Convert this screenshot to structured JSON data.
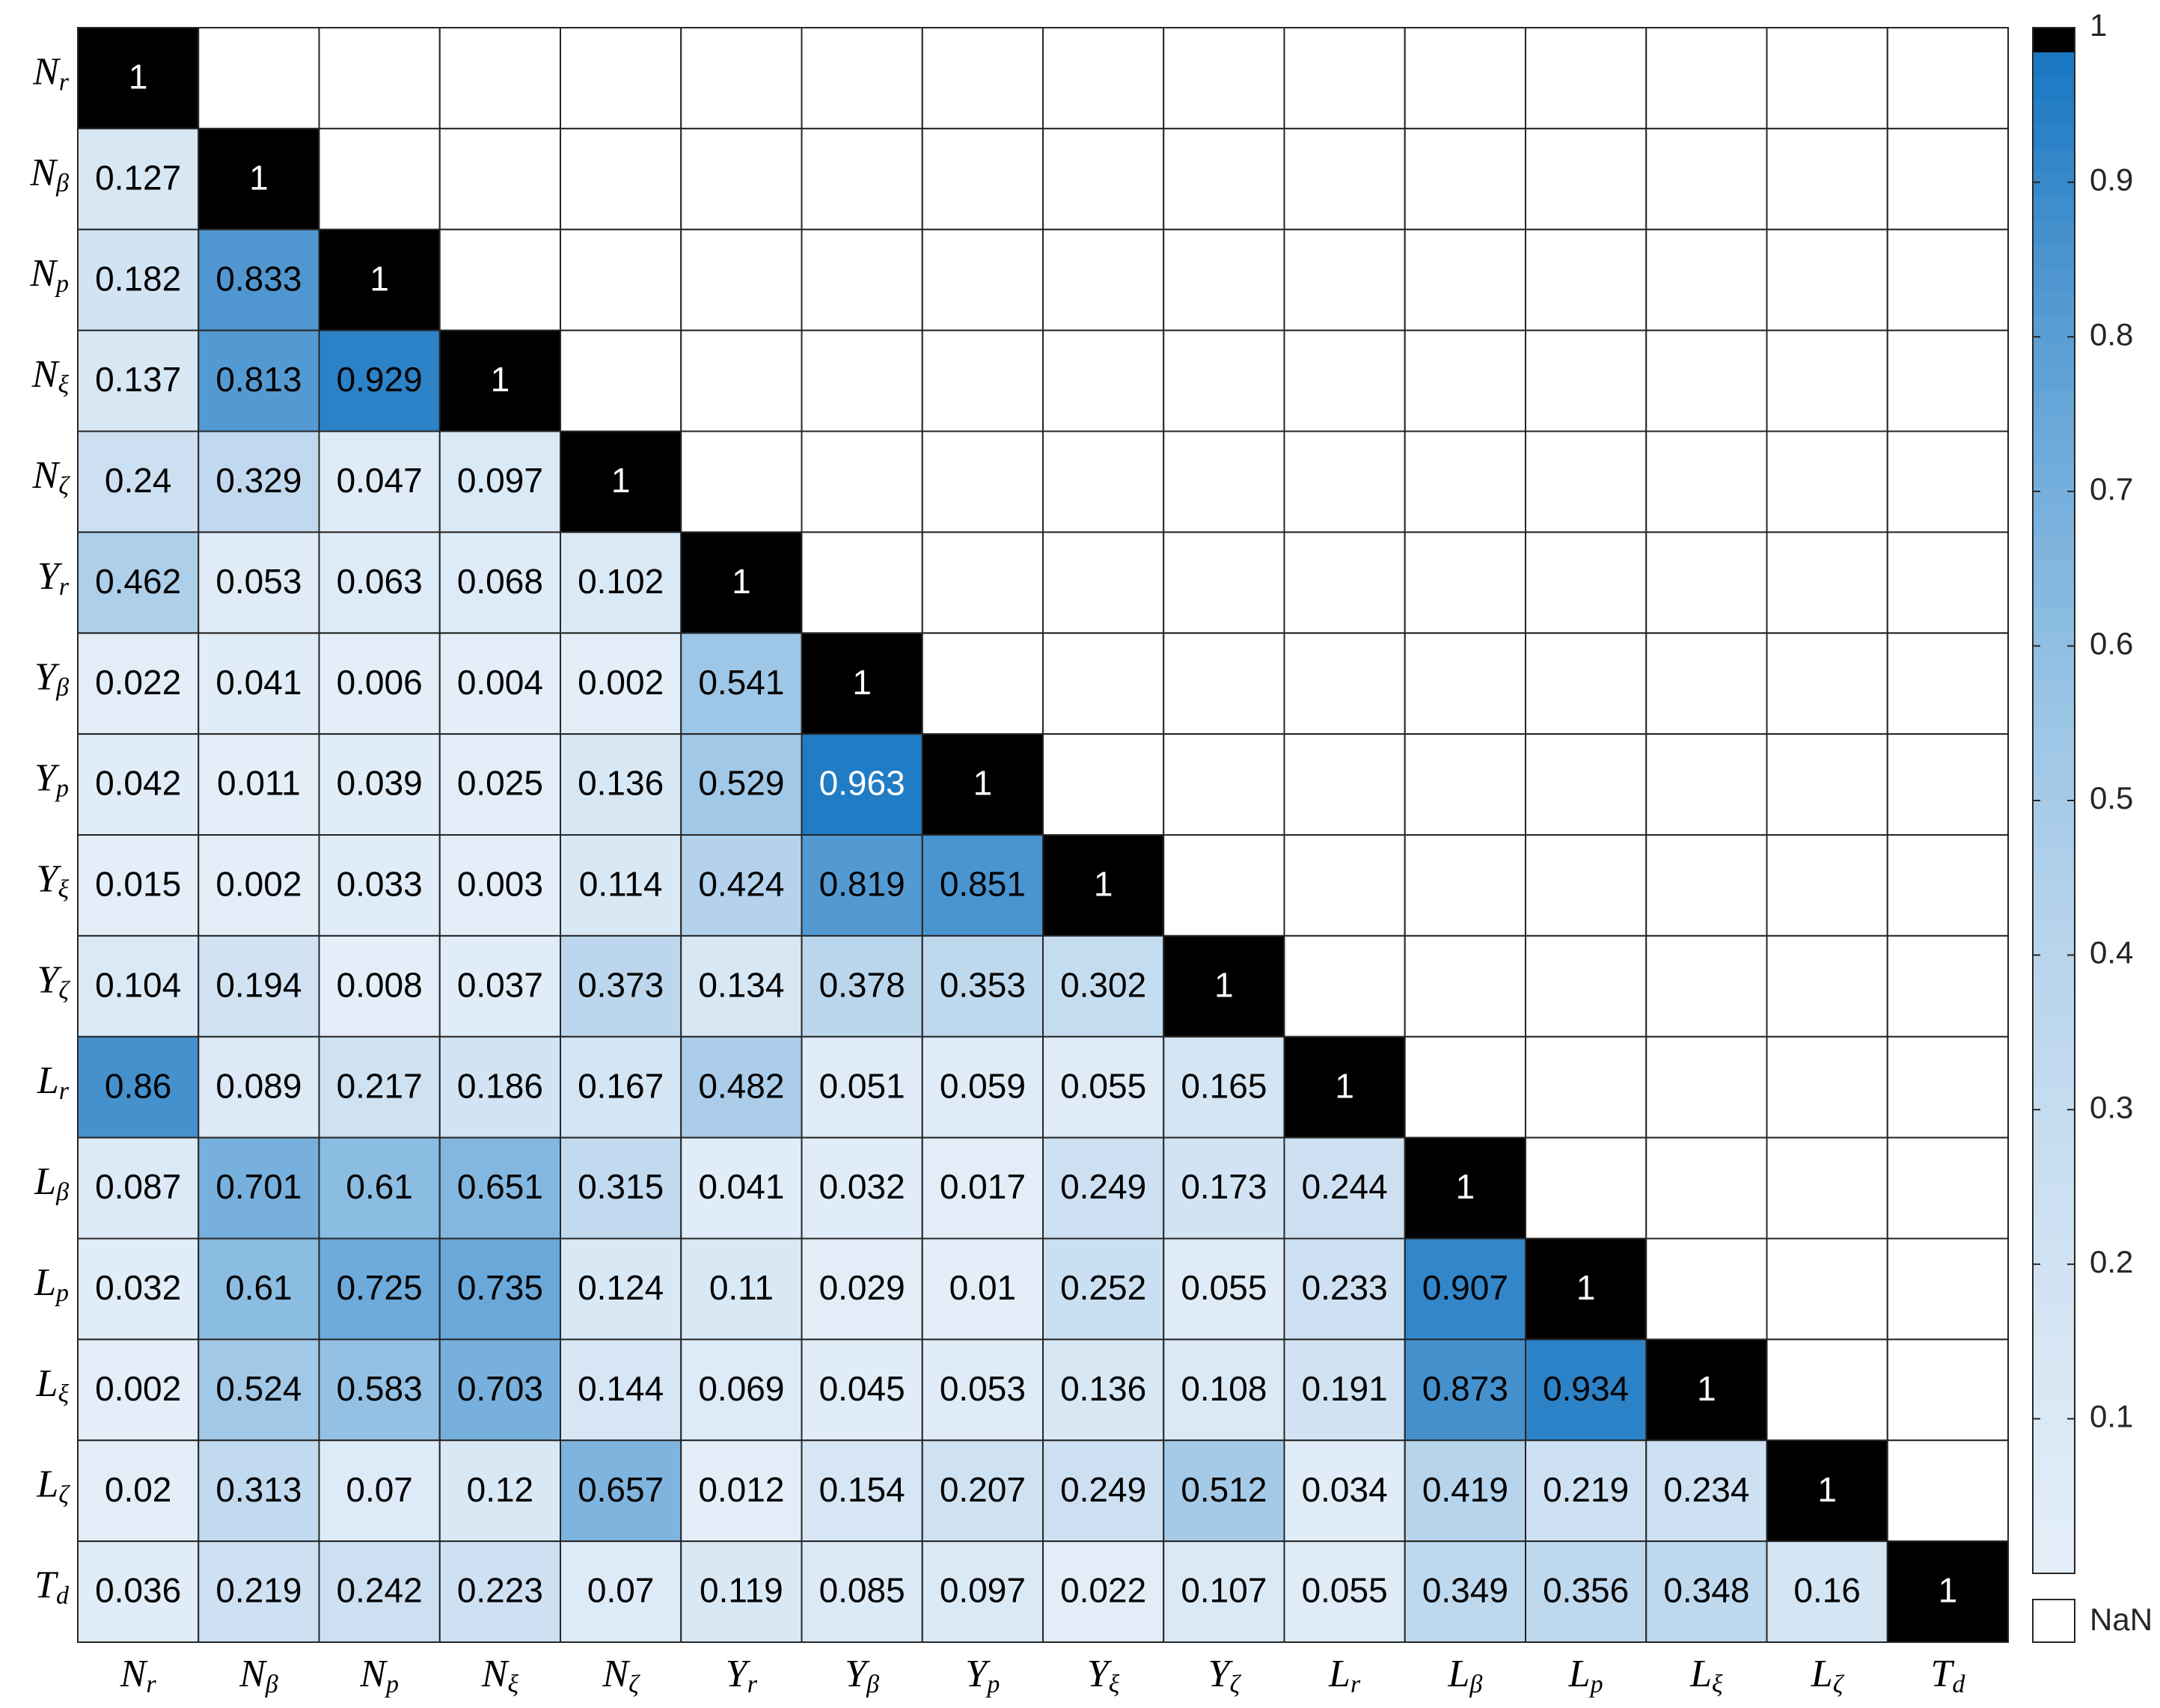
{
  "chart_data": {
    "type": "heatmap",
    "labels": [
      [
        "N",
        "r"
      ],
      [
        "N",
        "β"
      ],
      [
        "N",
        "p"
      ],
      [
        "N",
        "ξ"
      ],
      [
        "N",
        "ζ"
      ],
      [
        "Y",
        "r"
      ],
      [
        "Y",
        "β"
      ],
      [
        "Y",
        "p"
      ],
      [
        "Y",
        "ξ"
      ],
      [
        "Y",
        "ζ"
      ],
      [
        "L",
        "r"
      ],
      [
        "L",
        "β"
      ],
      [
        "L",
        "p"
      ],
      [
        "L",
        "ξ"
      ],
      [
        "L",
        "ζ"
      ],
      [
        "T",
        "d"
      ]
    ],
    "values": [
      [
        1,
        null,
        null,
        null,
        null,
        null,
        null,
        null,
        null,
        null,
        null,
        null,
        null,
        null,
        null,
        null
      ],
      [
        0.127,
        1,
        null,
        null,
        null,
        null,
        null,
        null,
        null,
        null,
        null,
        null,
        null,
        null,
        null,
        null
      ],
      [
        0.182,
        0.833,
        1,
        null,
        null,
        null,
        null,
        null,
        null,
        null,
        null,
        null,
        null,
        null,
        null,
        null
      ],
      [
        0.137,
        0.813,
        0.929,
        1,
        null,
        null,
        null,
        null,
        null,
        null,
        null,
        null,
        null,
        null,
        null,
        null
      ],
      [
        0.24,
        0.329,
        0.047,
        0.097,
        1,
        null,
        null,
        null,
        null,
        null,
        null,
        null,
        null,
        null,
        null,
        null
      ],
      [
        0.462,
        0.053,
        0.063,
        0.068,
        0.102,
        1,
        null,
        null,
        null,
        null,
        null,
        null,
        null,
        null,
        null,
        null
      ],
      [
        0.022,
        0.041,
        0.006,
        0.004,
        0.002,
        0.541,
        1,
        null,
        null,
        null,
        null,
        null,
        null,
        null,
        null,
        null
      ],
      [
        0.042,
        0.011,
        0.039,
        0.025,
        0.136,
        0.529,
        0.963,
        1,
        null,
        null,
        null,
        null,
        null,
        null,
        null,
        null
      ],
      [
        0.015,
        0.002,
        0.033,
        0.003,
        0.114,
        0.424,
        0.819,
        0.851,
        1,
        null,
        null,
        null,
        null,
        null,
        null,
        null
      ],
      [
        0.104,
        0.194,
        0.008,
        0.037,
        0.373,
        0.134,
        0.378,
        0.353,
        0.302,
        1,
        null,
        null,
        null,
        null,
        null,
        null
      ],
      [
        0.86,
        0.089,
        0.217,
        0.186,
        0.167,
        0.482,
        0.051,
        0.059,
        0.055,
        0.165,
        1,
        null,
        null,
        null,
        null,
        null
      ],
      [
        0.087,
        0.701,
        0.61,
        0.651,
        0.315,
        0.041,
        0.032,
        0.017,
        0.249,
        0.173,
        0.244,
        1,
        null,
        null,
        null,
        null
      ],
      [
        0.032,
        0.61,
        0.725,
        0.735,
        0.124,
        0.11,
        0.029,
        0.01,
        0.252,
        0.055,
        0.233,
        0.907,
        1,
        null,
        null,
        null
      ],
      [
        0.002,
        0.524,
        0.583,
        0.703,
        0.144,
        0.069,
        0.045,
        0.053,
        0.136,
        0.108,
        0.191,
        0.873,
        0.934,
        1,
        null,
        null
      ],
      [
        0.02,
        0.313,
        0.07,
        0.12,
        0.657,
        0.012,
        0.154,
        0.207,
        0.249,
        0.512,
        0.034,
        0.419,
        0.219,
        0.234,
        1,
        null
      ],
      [
        0.036,
        0.219,
        0.242,
        0.223,
        0.07,
        0.119,
        0.085,
        0.097,
        0.022,
        0.107,
        0.055,
        0.349,
        0.356,
        0.348,
        0.16,
        1
      ]
    ],
    "clim": [
      0,
      1
    ],
    "cticks": [
      0.1,
      0.2,
      0.3,
      0.4,
      0.5,
      0.6,
      0.7,
      0.8,
      0.9,
      1
    ],
    "colormap": [
      "#e3eef9",
      "#d6e6f4",
      "#c7ddf0",
      "#b5d3eb",
      "#9ac4e5",
      "#76afdc",
      "#4f97d1",
      "#1a78c2"
    ],
    "colormap_levels": 64,
    "max_color": "#000000",
    "nan_color": "#ffffff",
    "nan_label": "NaN"
  }
}
